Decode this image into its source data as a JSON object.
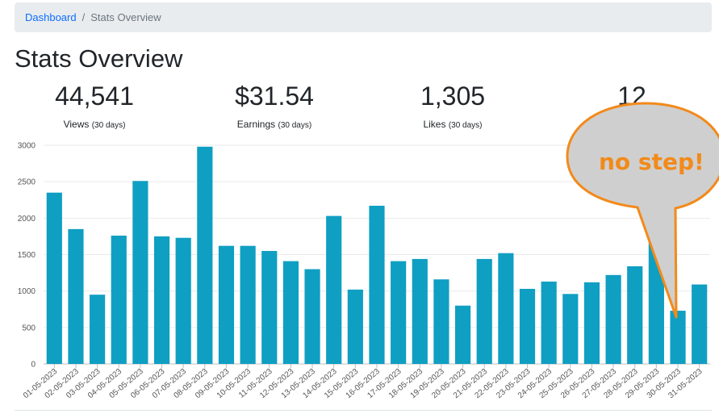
{
  "breadcrumb": {
    "home": "Dashboard",
    "separator": "/",
    "current": "Stats Overview"
  },
  "page": {
    "title": "Stats Overview"
  },
  "stats": [
    {
      "value": "44,541",
      "label": "Views",
      "period": "(30 days)"
    },
    {
      "value": "$31.54",
      "label": "Earnings",
      "period": "(30 days)"
    },
    {
      "value": "1,305",
      "label": "Likes",
      "period": "(30 days)"
    },
    {
      "value": "12",
      "label": "",
      "period": ""
    }
  ],
  "annotation": {
    "text": "no step!"
  },
  "chart_data": {
    "type": "bar",
    "title": "",
    "xlabel": "",
    "ylabel": "",
    "ylim": [
      0,
      3000
    ],
    "yticks": [
      0,
      500,
      1000,
      1500,
      2000,
      2500,
      3000
    ],
    "grid": true,
    "bar_color": "#0f9fc2",
    "categories": [
      "01-05-2023",
      "02-05-2023",
      "03-05-2023",
      "04-05-2023",
      "05-05-2023",
      "06-05-2023",
      "07-05-2023",
      "08-05-2023",
      "09-05-2023",
      "10-05-2023",
      "11-05-2023",
      "12-05-2023",
      "13-05-2023",
      "14-05-2023",
      "15-05-2023",
      "16-05-2023",
      "17-05-2023",
      "18-05-2023",
      "19-05-2023",
      "20-05-2023",
      "21-05-2023",
      "22-05-2023",
      "23-05-2023",
      "24-05-2023",
      "25-05-2023",
      "26-05-2023",
      "27-05-2023",
      "28-05-2023",
      "29-05-2023",
      "30-05-2023",
      "31-05-2023"
    ],
    "values": [
      2350,
      1850,
      950,
      1760,
      2510,
      1750,
      1730,
      2980,
      1620,
      1620,
      1550,
      1410,
      1300,
      2030,
      1020,
      2170,
      1410,
      1440,
      1160,
      800,
      1440,
      1520,
      1030,
      1130,
      960,
      1120,
      1220,
      1340,
      1760,
      730,
      1090
    ]
  }
}
